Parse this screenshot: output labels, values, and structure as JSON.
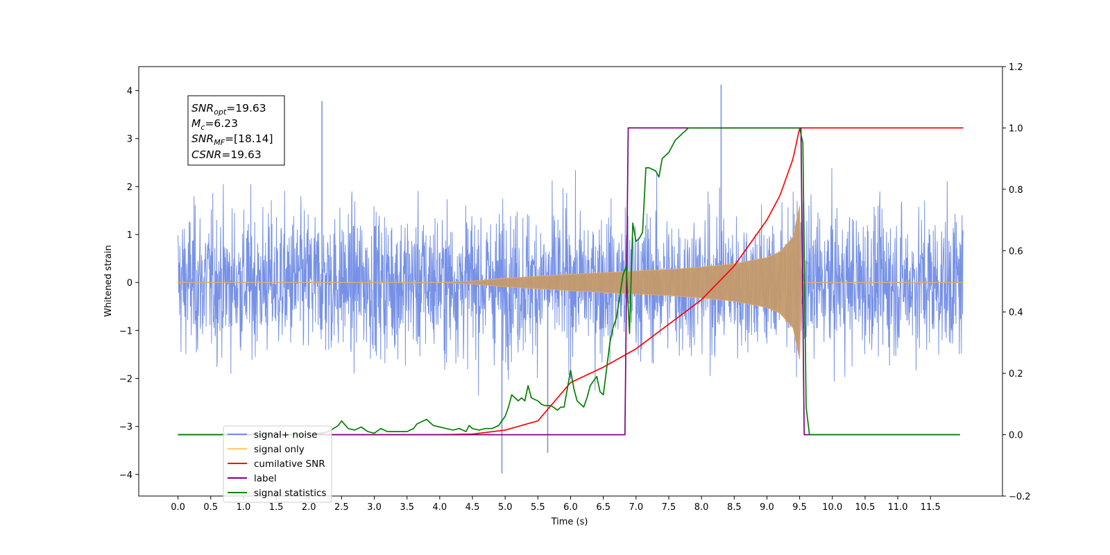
{
  "chart_data": {
    "type": "line",
    "xlabel": "Time (s)",
    "ylabel": "Whitened strain",
    "xlim": [
      -0.6,
      12.6
    ],
    "ylim": [
      -4.45,
      4.5
    ],
    "y2lim": [
      -0.2,
      1.2
    ],
    "x_ticks": [
      0.0,
      0.5,
      1.0,
      1.5,
      2.0,
      2.5,
      3.0,
      3.5,
      4.0,
      4.5,
      5.0,
      5.5,
      6.0,
      6.5,
      7.0,
      7.5,
      8.0,
      8.5,
      9.0,
      9.5,
      10.0,
      10.5,
      11.0,
      11.5
    ],
    "x_tick_labels": [
      "0.0",
      "0.5",
      "1.0",
      "1.5",
      "2.0",
      "2.5",
      "3.0",
      "3.5",
      "4.0",
      "4.5",
      "5.0",
      "5.5",
      "6.0",
      "6.5",
      "7.0",
      "7.5",
      "8.0",
      "8.5",
      "9.0",
      "9.5",
      "10.0",
      "10.5",
      "11.0",
      "11.5"
    ],
    "y_ticks": [
      -4,
      -3,
      -2,
      -1,
      0,
      1,
      2,
      3,
      4
    ],
    "y_tick_labels": [
      "−4",
      "−3",
      "−2",
      "−1",
      "0",
      "1",
      "2",
      "3",
      "4"
    ],
    "y2_ticks": [
      -0.2,
      0.0,
      0.2,
      0.4,
      0.6,
      0.8,
      1.0,
      1.2
    ],
    "y2_tick_labels": [
      "−0.2",
      "0.0",
      "0.2",
      "0.4",
      "0.6",
      "0.8",
      "1.0",
      "1.2"
    ],
    "legend": {
      "placement": "lower-left",
      "entries": [
        {
          "label": "signal+ noise",
          "color": "#6f8be6"
        },
        {
          "label": "signal only",
          "color": "#ffc966"
        },
        {
          "label": "cumilative SNR",
          "color": "#ff0000"
        },
        {
          "label": "label",
          "color": "#800080"
        },
        {
          "label": "signal statistics",
          "color": "#008000"
        }
      ]
    },
    "info_box": {
      "lines": [
        {
          "base": "SNR",
          "sub": "opt",
          "rest": "=19.63"
        },
        {
          "base": "M",
          "sub": "c",
          "rest": "=6.23"
        },
        {
          "base": "SNR",
          "sub": "MF",
          "rest": "=[18.14]"
        },
        {
          "base": "CSNR",
          "sub": "",
          "rest": "=19.63"
        }
      ]
    },
    "series": [
      {
        "name": "signal+ noise",
        "axis": "left",
        "color": "#6f8be6",
        "duration": 12.0,
        "envelope_bounds": [
          -2.0,
          2.0
        ],
        "notable_spikes": [
          [
            2.2,
            3.78
          ],
          [
            8.3,
            4.12
          ],
          [
            4.95,
            -3.98
          ],
          [
            5.65,
            -3.55
          ]
        ]
      },
      {
        "name": "signal only",
        "axis": "left",
        "color": "#c49a6c",
        "chirp_amplitude": {
          "x": [
            0.0,
            4.0,
            4.5,
            5.0,
            6.0,
            7.0,
            7.5,
            8.0,
            8.5,
            9.0,
            9.2,
            9.4,
            9.5,
            9.52,
            9.55,
            12.0
          ],
          "y": [
            0.0,
            0.0,
            0.03,
            0.09,
            0.17,
            0.24,
            0.27,
            0.32,
            0.39,
            0.52,
            0.64,
            0.95,
            1.6,
            0.4,
            0.0,
            0.0
          ]
        }
      },
      {
        "name": "cumilative SNR",
        "axis": "right",
        "color": "#ff0000",
        "x": [
          0.0,
          4.0,
          4.5,
          5.0,
          5.5,
          6.0,
          6.5,
          7.0,
          7.5,
          8.0,
          8.5,
          9.0,
          9.2,
          9.4,
          9.5,
          9.52,
          12.0
        ],
        "y": [
          0.0,
          0.0,
          0.002,
          0.015,
          0.045,
          0.17,
          0.22,
          0.28,
          0.36,
          0.44,
          0.55,
          0.7,
          0.78,
          0.9,
          1.0,
          1.0,
          1.0
        ]
      },
      {
        "name": "label",
        "axis": "right",
        "color": "#800080",
        "x": [
          0.0,
          6.83,
          6.88,
          9.52,
          9.57,
          11.95
        ],
        "y": [
          0.0,
          0.0,
          1.0,
          1.0,
          0.0,
          0.0
        ]
      },
      {
        "name": "signal statistics",
        "axis": "right",
        "color": "#008000",
        "x": [
          0.0,
          2.0,
          2.2,
          2.3,
          2.45,
          2.5,
          2.6,
          2.7,
          2.8,
          2.9,
          3.0,
          3.1,
          3.2,
          3.3,
          3.4,
          3.5,
          3.6,
          3.65,
          3.7,
          3.8,
          3.9,
          4.0,
          4.1,
          4.2,
          4.3,
          4.4,
          4.45,
          4.5,
          4.6,
          4.7,
          4.8,
          4.9,
          5.0,
          5.05,
          5.1,
          5.2,
          5.25,
          5.3,
          5.35,
          5.4,
          5.5,
          5.55,
          5.6,
          5.7,
          5.8,
          5.85,
          5.9,
          6.0,
          6.05,
          6.1,
          6.2,
          6.25,
          6.3,
          6.4,
          6.45,
          6.5,
          6.6,
          6.65,
          6.7,
          6.8,
          6.85,
          6.9,
          6.95,
          7.0,
          7.05,
          7.1,
          7.15,
          7.2,
          7.3,
          7.35,
          7.4,
          7.5,
          7.6,
          7.7,
          7.8,
          8.0,
          9.0,
          9.4,
          9.5,
          9.55,
          9.6,
          9.65,
          11.95
        ],
        "y": [
          0.0,
          0.0,
          0.005,
          0.01,
          0.03,
          0.045,
          0.02,
          0.015,
          0.025,
          0.01,
          0.005,
          0.02,
          0.01,
          0.01,
          0.01,
          0.01,
          0.02,
          0.035,
          0.04,
          0.05,
          0.03,
          0.025,
          0.02,
          0.015,
          0.02,
          0.01,
          0.03,
          0.02,
          0.015,
          0.02,
          0.02,
          0.03,
          0.06,
          0.09,
          0.13,
          0.11,
          0.12,
          0.11,
          0.16,
          0.12,
          0.11,
          0.1,
          0.095,
          0.095,
          0.08,
          0.09,
          0.09,
          0.21,
          0.15,
          0.11,
          0.09,
          0.12,
          0.16,
          0.19,
          0.14,
          0.13,
          0.3,
          0.35,
          0.38,
          0.52,
          0.55,
          0.33,
          0.69,
          0.63,
          0.64,
          0.66,
          0.87,
          0.87,
          0.86,
          0.84,
          0.9,
          0.92,
          0.96,
          0.98,
          1.0,
          1.0,
          1.0,
          1.0,
          1.0,
          0.95,
          0.09,
          0.0,
          0.0
        ]
      }
    ]
  }
}
